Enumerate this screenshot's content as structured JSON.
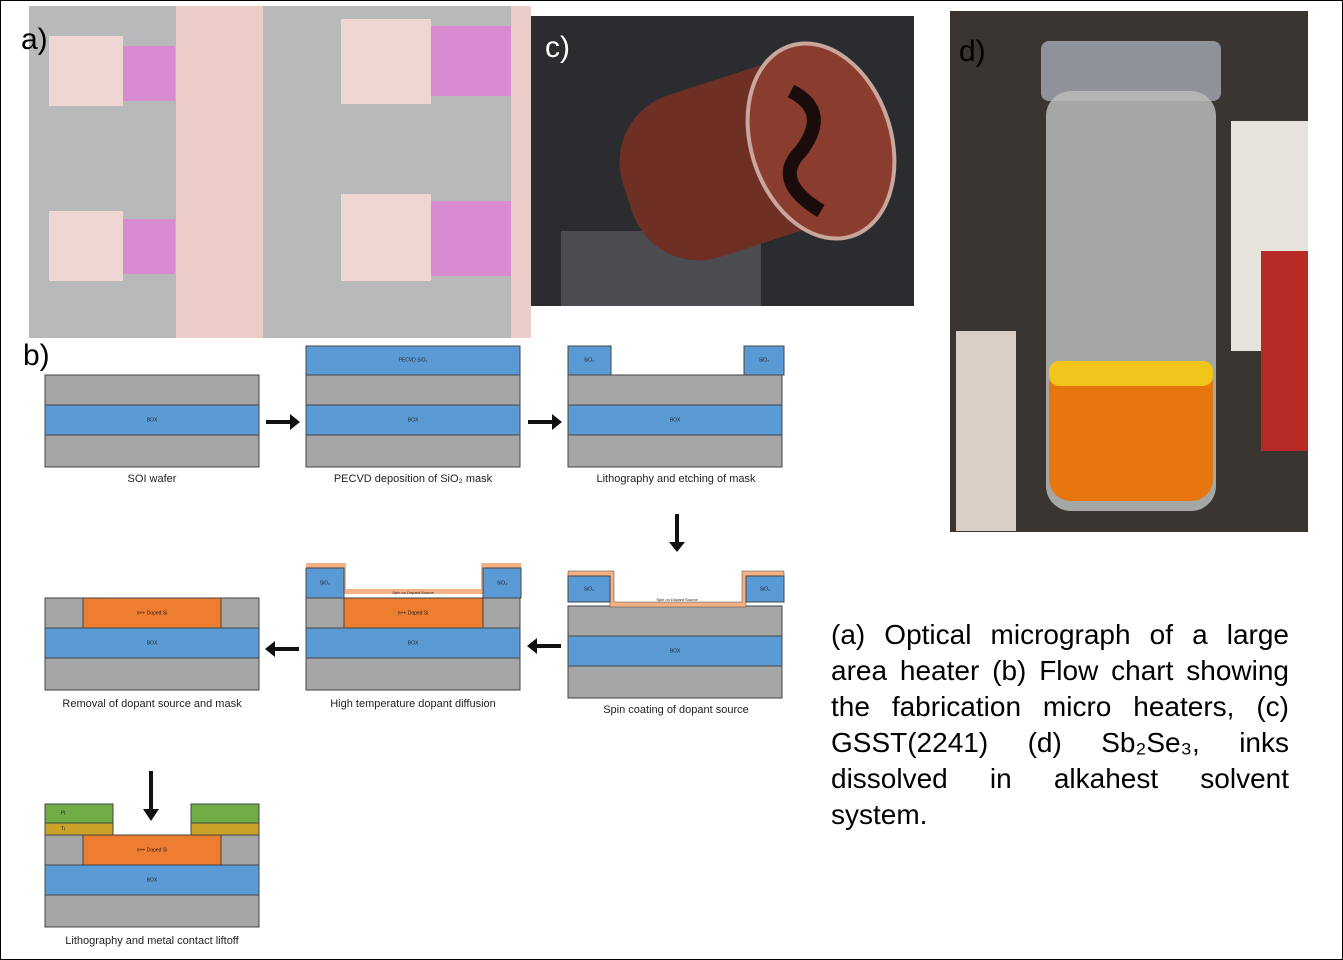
{
  "panels": {
    "a": "a)",
    "b": "b)",
    "c": "c)",
    "d": "d)"
  },
  "flowchart": {
    "steps": [
      {
        "caption": "SOI wafer",
        "labels": [
          "BOX"
        ]
      },
      {
        "caption": "PECVD deposition of SiO₂ mask",
        "labels": [
          "PECVD SiO₂",
          "BOX"
        ]
      },
      {
        "caption": "Lithography and etching of mask",
        "labels": [
          "SiO₂",
          "SiO₂",
          "BOX"
        ]
      },
      {
        "caption": "Spin coating of dopant source",
        "labels": [
          "SiO₂",
          "SiO₂",
          "Spin on Dopant Source",
          "BOX"
        ]
      },
      {
        "caption": "High temperature dopant diffusion",
        "labels": [
          "SiO₂",
          "SiO₂",
          "Spin on Dopant Source",
          "n++ Doped Si",
          "BOX"
        ]
      },
      {
        "caption": "Removal of dopant source and mask",
        "labels": [
          "n++ Doped Si",
          "BOX"
        ]
      },
      {
        "caption": "Lithography and metal contact liftoff",
        "labels": [
          "Pt",
          "Ti",
          "n++ Doped Si",
          "BOX"
        ]
      }
    ]
  },
  "caption": "(a) Optical micrograph of a large area heater (b) Flow chart showing the fabrication micro heaters, (c) GSST(2241) (d) Sb₂Se₃, inks dissolved in alkahest solvent system."
}
